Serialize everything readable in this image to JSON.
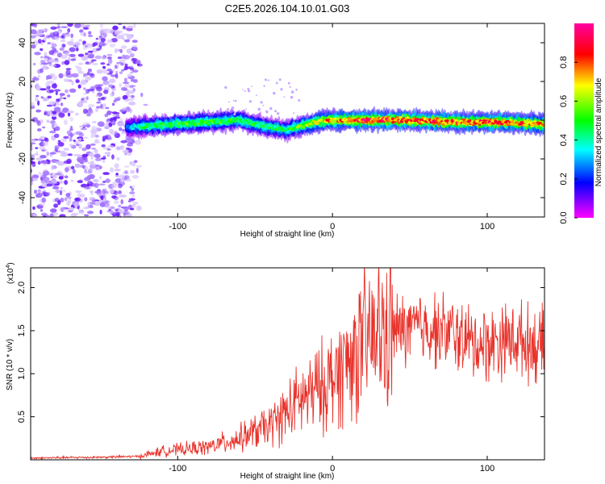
{
  "title": "C2E5.2026.104.10.01.G03",
  "chart_data": [
    {
      "type": "heatmap",
      "xlabel": "Height of straight line (km)",
      "ylabel": "Frequency (Hz)",
      "xlim": [
        -195,
        137
      ],
      "ylim": [
        -50,
        50
      ],
      "xticks": [
        -100,
        0,
        100
      ],
      "yticks": [
        -40,
        -20,
        0,
        20,
        40
      ],
      "colorbar": {
        "label": "Normalized spectral amplitude",
        "range": [
          0,
          1
        ],
        "ticks": [
          0.0,
          0.2,
          0.4,
          0.6,
          0.8
        ]
      },
      "noise_region_x": [
        -195,
        -127
      ],
      "ridge": [
        {
          "x": -133,
          "f": -4,
          "amp": 0.25
        },
        {
          "x": -120,
          "f": -3,
          "amp": 0.45
        },
        {
          "x": -100,
          "f": -2,
          "amp": 0.5
        },
        {
          "x": -80,
          "f": -1,
          "amp": 0.5
        },
        {
          "x": -60,
          "f": 0,
          "amp": 0.45
        },
        {
          "x": -45,
          "f": -3,
          "amp": 0.45
        },
        {
          "x": -30,
          "f": -5,
          "amp": 0.45
        },
        {
          "x": -20,
          "f": -3,
          "amp": 0.55
        },
        {
          "x": -5,
          "f": 0,
          "amp": 0.7
        },
        {
          "x": 20,
          "f": 0,
          "amp": 0.85
        },
        {
          "x": 50,
          "f": 0,
          "amp": 0.85
        },
        {
          "x": 80,
          "f": -1,
          "amp": 0.8
        },
        {
          "x": 110,
          "f": -1,
          "amp": 0.8
        },
        {
          "x": 137,
          "f": -2,
          "amp": 0.75
        }
      ]
    },
    {
      "type": "line",
      "xlabel": "Height of straight line (km)",
      "ylabel": "SNR (10 * v/v)",
      "scale_label": "(x10",
      "scale_exponent": "4",
      "xlim": [
        -195,
        137
      ],
      "ylim": [
        0,
        2.23
      ],
      "xticks": [
        -100,
        0,
        100
      ],
      "yticks": [
        0.5,
        1.0,
        1.5,
        2.0
      ],
      "series": [
        {
          "name": "SNR",
          "color": "#e8322a",
          "x": [
            -195,
            -150,
            -125,
            -110,
            -80,
            -60,
            -40,
            -30,
            -20,
            -10,
            0,
            10,
            20,
            30,
            40,
            50,
            60,
            70,
            80,
            90,
            100,
            110,
            120,
            137
          ],
          "values": [
            0.02,
            0.03,
            0.04,
            0.1,
            0.15,
            0.25,
            0.4,
            0.55,
            0.7,
            0.8,
            0.95,
            1.15,
            1.35,
            1.45,
            1.5,
            1.52,
            1.55,
            1.5,
            1.45,
            1.35,
            1.35,
            1.4,
            1.4,
            1.3
          ]
        }
      ]
    }
  ]
}
